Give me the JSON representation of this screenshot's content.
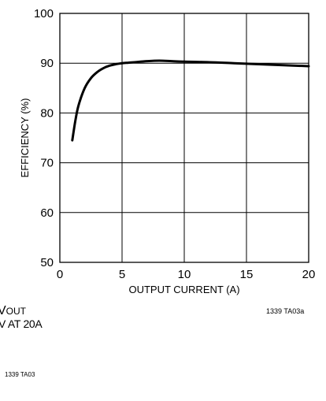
{
  "chart_data": {
    "type": "line",
    "title": "",
    "xlabel": "OUTPUT CURRENT (A)",
    "ylabel": "EFFICIENCY (%)",
    "xlim": [
      0,
      20
    ],
    "ylim": [
      50,
      100
    ],
    "xticks": [
      0,
      5,
      10,
      15,
      20
    ],
    "yticks": [
      50,
      60,
      70,
      80,
      90,
      100
    ],
    "grid": true,
    "series": [
      {
        "name": "",
        "color": "#000000",
        "x": [
          1,
          1.25,
          1.5,
          2,
          2.5,
          3,
          3.5,
          4,
          4.5,
          5,
          5.5,
          6,
          7,
          8,
          9,
          10,
          12,
          14,
          16,
          18,
          20
        ],
        "y": [
          74.5,
          78.5,
          81.5,
          85,
          87,
          88.2,
          89,
          89.5,
          89.8,
          90,
          90.1,
          90.2,
          90.4,
          90.5,
          90.4,
          90.3,
          90.2,
          90.0,
          89.8,
          89.6,
          89.4
        ]
      }
    ]
  },
  "figure_code": "1339 TA03a",
  "fragments": {
    "vout": "VOUT",
    "at_current": "V AT 20A",
    "code2": "1339 TA03"
  }
}
